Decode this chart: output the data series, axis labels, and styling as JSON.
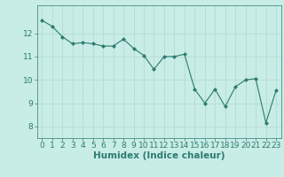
{
  "x": [
    0,
    1,
    2,
    3,
    4,
    5,
    6,
    7,
    8,
    9,
    10,
    11,
    12,
    13,
    14,
    15,
    16,
    17,
    18,
    19,
    20,
    21,
    22,
    23
  ],
  "y": [
    12.55,
    12.3,
    11.85,
    11.55,
    11.6,
    11.55,
    11.45,
    11.45,
    11.75,
    11.35,
    11.05,
    10.45,
    11.0,
    11.0,
    11.1,
    9.6,
    9.0,
    9.6,
    8.85,
    9.7,
    10.0,
    10.05,
    8.15,
    9.55
  ],
  "line_color": "#2d7b6f",
  "marker": "D",
  "markersize": 2.0,
  "linewidth": 0.8,
  "xlabel": "Humidex (Indice chaleur)",
  "xlim": [
    -0.5,
    23.5
  ],
  "ylim": [
    7.5,
    13.2
  ],
  "yticks": [
    8,
    9,
    10,
    11,
    12
  ],
  "xticks": [
    0,
    1,
    2,
    3,
    4,
    5,
    6,
    7,
    8,
    9,
    10,
    11,
    12,
    13,
    14,
    15,
    16,
    17,
    18,
    19,
    20,
    21,
    22,
    23
  ],
  "bg_color": "#c8ece6",
  "grid_color": "#b0d8d0",
  "tick_color": "#2d7b6f",
  "label_color": "#2d7b6f",
  "font_size": 6.5,
  "xlabel_fontsize": 7.5
}
